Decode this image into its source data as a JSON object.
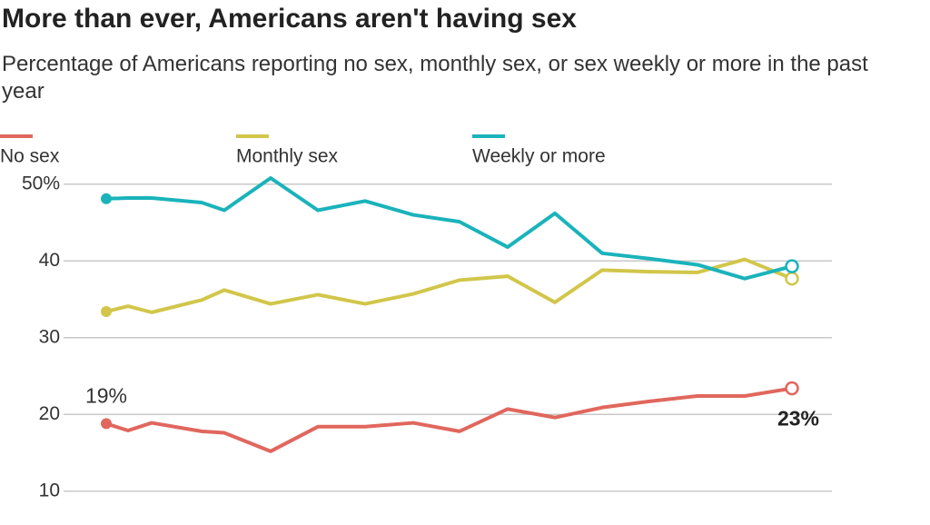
{
  "chart_data": {
    "type": "line",
    "title": "More than ever, Americans aren't having sex",
    "subtitle": "Percentage of Americans reporting no sex, monthly sex, or sex weekly or more in the past year",
    "series": [
      {
        "name": "No sex",
        "color": "#e0675d",
        "values": [
          18.8,
          17.9,
          18.9,
          17.8,
          17.6,
          15.2,
          18.4,
          18.4,
          18.9,
          17.8,
          20.7,
          19.6,
          20.9,
          21.7,
          22.4,
          22.4,
          23.4
        ],
        "value_labels": [
          "19%",
          null,
          null,
          null,
          null,
          null,
          null,
          null,
          null,
          null,
          null,
          null,
          null,
          null,
          null,
          null,
          "23%"
        ]
      },
      {
        "name": "Monthly sex",
        "color": "#d1c64a",
        "values": [
          33.4,
          34.1,
          33.3,
          34.9,
          36.2,
          34.4,
          35.6,
          34.4,
          35.7,
          37.5,
          38.0,
          34.6,
          38.8,
          38.6,
          38.5,
          40.2,
          37.7
        ]
      },
      {
        "name": "Weekly or more",
        "color": "#1ab3bb",
        "values": [
          48.1,
          48.2,
          48.2,
          47.6,
          46.6,
          50.8,
          46.6,
          47.8,
          46.0,
          45.1,
          41.8,
          46.2,
          41.0,
          40.3,
          39.5,
          37.7,
          39.3
        ]
      }
    ],
    "ylim": [
      9.5,
      51
    ],
    "yticks": [
      10,
      20,
      30,
      40,
      {
        "value": 50,
        "label": "50%"
      }
    ],
    "grid": true
  }
}
